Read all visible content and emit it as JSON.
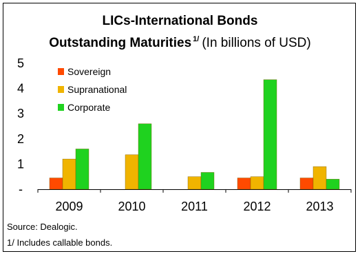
{
  "chart_data": {
    "type": "bar",
    "title": "LICs-International Bonds",
    "subtitle_bold": "Outstanding Maturities",
    "subtitle_footnote_mark": "1/",
    "subtitle_unit": "(In billions of USD)",
    "categories": [
      "2009",
      "2010",
      "2011",
      "2012",
      "2013"
    ],
    "series": [
      {
        "name": "Sovereign",
        "color": "#ff4a00",
        "values": [
          0.45,
          0,
          0,
          0.45,
          0.45
        ]
      },
      {
        "name": "Supranational",
        "color": "#f0b400",
        "values": [
          1.2,
          1.37,
          0.5,
          0.5,
          0.9
        ]
      },
      {
        "name": "Corporate",
        "color": "#1fd21f",
        "values": [
          1.6,
          2.6,
          0.67,
          4.35,
          0.4
        ]
      }
    ],
    "yticks": [
      {
        "value": 0,
        "label": "-"
      },
      {
        "value": 1,
        "label": "1"
      },
      {
        "value": 2,
        "label": "2"
      },
      {
        "value": 3,
        "label": "3"
      },
      {
        "value": 4,
        "label": "4"
      },
      {
        "value": 5,
        "label": "5"
      }
    ],
    "ylim": [
      0,
      5
    ],
    "grid": false,
    "legend_position": "top-left"
  },
  "footer": {
    "source": "Source: Dealogic.",
    "note": "1/ Includes callable bonds."
  }
}
